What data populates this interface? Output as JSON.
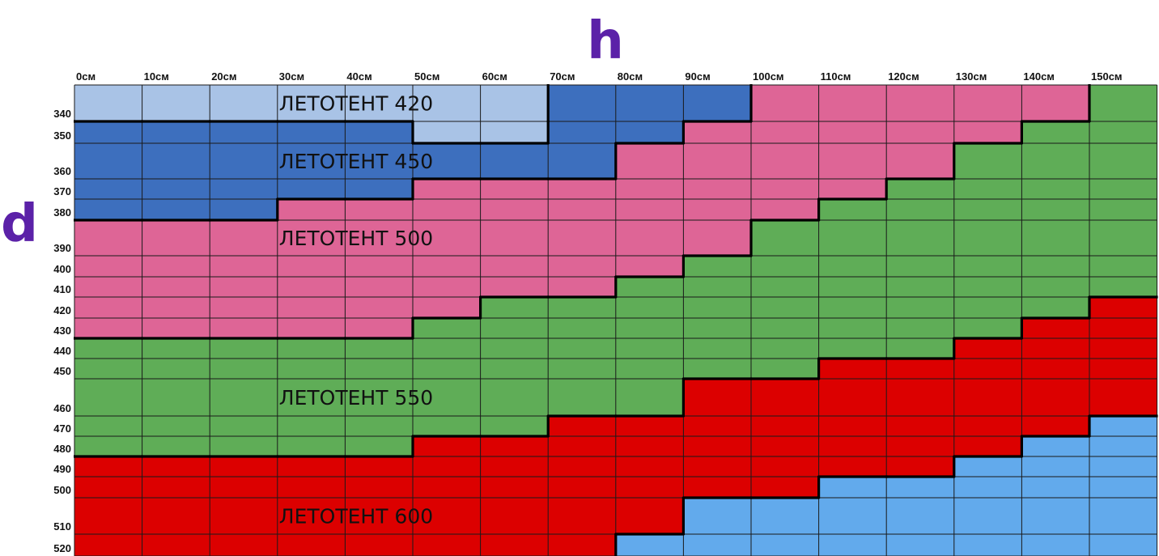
{
  "chart_data": {
    "type": "heatmap",
    "xlabel": "h",
    "ylabel": "d",
    "x_ticks": [
      "0см",
      "10см",
      "20см",
      "30см",
      "40см",
      "50см",
      "60см",
      "70см",
      "80см",
      "90см",
      "100см",
      "110см",
      "120см",
      "130см",
      "140см",
      "150см"
    ],
    "y_ticks": [
      "340",
      "350",
      "360",
      "370",
      "380",
      "390",
      "400",
      "410",
      "420",
      "430",
      "440",
      "450",
      "460",
      "470",
      "480",
      "490",
      "500",
      "510",
      "520"
    ],
    "zones": [
      {
        "id": "z420",
        "label": "ЛЕТОТЕНТ 420",
        "color": "#a9c3e6"
      },
      {
        "id": "z450",
        "label": "ЛЕТОТЕНТ 450",
        "color": "#3d6fbe"
      },
      {
        "id": "z500",
        "label": "ЛЕТОТЕНТ 500",
        "color": "#de6596"
      },
      {
        "id": "z550",
        "label": "ЛЕТОТЕНТ 550",
        "color": "#5fad57"
      },
      {
        "id": "z600",
        "label": "ЛЕТОТЕНТ 600",
        "color": "#dc0000"
      },
      {
        "id": "zNext",
        "label": "",
        "color": "#62aaec"
      }
    ],
    "thresholds": [
      {
        "from": "z420",
        "to": "z450",
        "min_d_by_h": [
          350,
          350,
          350,
          350,
          350,
          360,
          360,
          340,
          340,
          340,
          null,
          null,
          null,
          null,
          null,
          null
        ]
      },
      {
        "from": "z450",
        "to": "z500",
        "min_d_by_h": [
          390,
          390,
          390,
          380,
          380,
          370,
          370,
          370,
          360,
          350,
          340,
          340,
          340,
          340,
          340,
          null
        ]
      },
      {
        "from": "z500",
        "to": "z550",
        "min_d_by_h": [
          440,
          440,
          440,
          440,
          440,
          430,
          420,
          420,
          410,
          400,
          390,
          380,
          370,
          360,
          350,
          340
        ]
      },
      {
        "from": "z550",
        "to": "z600",
        "min_d_by_h": [
          490,
          490,
          490,
          490,
          490,
          480,
          480,
          470,
          470,
          460,
          460,
          450,
          450,
          440,
          430,
          420
        ]
      },
      {
        "from": "z600",
        "to": "zNext",
        "min_d_by_h": [
          null,
          null,
          null,
          null,
          null,
          null,
          null,
          null,
          520,
          510,
          510,
          500,
          500,
          490,
          480,
          470
        ]
      }
    ]
  }
}
